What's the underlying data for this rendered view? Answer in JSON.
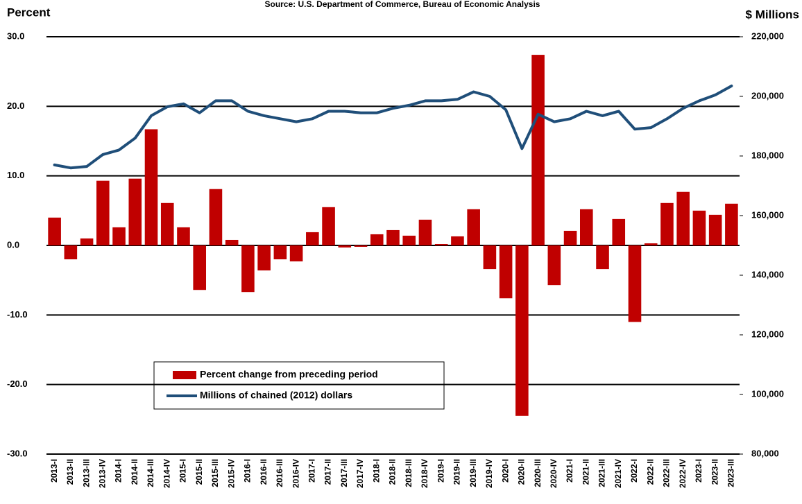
{
  "chart_data": {
    "type": "bar",
    "subtitle": "Source: U.S. Department of Commerce, Bureau of Economic Analysis",
    "y_label": "Percent",
    "y2_label": "$ Millions",
    "categories": [
      "2013-I",
      "2013-II",
      "2013-III",
      "2013-IV",
      "2014-I",
      "2014-II",
      "2014-III",
      "2014-IV",
      "2015-I",
      "2015-II",
      "2015-III",
      "2015-IV",
      "2016-I",
      "2016-II",
      "2016-III",
      "2016-IV",
      "2017-I",
      "2017-II",
      "2017-III",
      "2017-IV",
      "2018-I",
      "2018-II",
      "2018-III",
      "2018-IV",
      "2019-I",
      "2019-II",
      "2019-III",
      "2019-IV",
      "2020-I",
      "2020-II",
      "2020-III",
      "2020-IV",
      "2021-I",
      "2021-II",
      "2021-III",
      "2021-IV",
      "2022-I",
      "2022-II",
      "2022-III",
      "2022-IV",
      "2023-I",
      "2023-II",
      "2023-III"
    ],
    "series": [
      {
        "name": "Percent change from preceding period",
        "type": "bar",
        "color": "#c00000",
        "values": [
          4.0,
          -2.0,
          1.0,
          9.3,
          2.6,
          9.6,
          16.7,
          6.1,
          2.6,
          -6.4,
          8.1,
          0.8,
          -6.7,
          -3.6,
          -2.0,
          -2.3,
          1.9,
          5.5,
          -0.3,
          -0.2,
          1.6,
          2.2,
          1.4,
          3.7,
          0.2,
          1.3,
          5.2,
          -3.4,
          -7.6,
          -24.5,
          27.4,
          -5.7,
          2.1,
          5.2,
          -3.4,
          3.8,
          -11.0,
          0.3,
          6.1,
          7.7,
          5.0,
          4.4,
          6.0
        ]
      },
      {
        "name": "Millions of chained (2012) dollars",
        "type": "line",
        "axis": "y2",
        "color": "#1f4e79",
        "values": [
          177000,
          176000,
          176500,
          180500,
          182000,
          186000,
          193500,
          196500,
          197500,
          194500,
          198500,
          198500,
          195000,
          193500,
          192500,
          191500,
          192500,
          195000,
          195000,
          194500,
          194500,
          196000,
          197000,
          198500,
          198500,
          199000,
          201500,
          200000,
          195500,
          182500,
          194000,
          191500,
          192500,
          195000,
          193500,
          195000,
          189000,
          189500,
          192500,
          196000,
          198500,
          200500,
          203500
        ]
      }
    ],
    "ylim": [
      -30,
      30
    ],
    "yticks": [
      {
        "value": -30,
        "label": "-30.0"
      },
      {
        "value": -20,
        "label": "-20.0"
      },
      {
        "value": -10,
        "label": "-10.0"
      },
      {
        "value": 0,
        "label": "0.0"
      },
      {
        "value": 10,
        "label": "10.0"
      },
      {
        "value": 20,
        "label": "20.0"
      },
      {
        "value": 30,
        "label": "30.0"
      }
    ],
    "y2lim": [
      80000,
      220000
    ],
    "y2ticks": [
      {
        "value": 80000,
        "label": "80,000"
      },
      {
        "value": 100000,
        "label": "100,000"
      },
      {
        "value": 120000,
        "label": "120,000"
      },
      {
        "value": 140000,
        "label": "140,000"
      },
      {
        "value": 160000,
        "label": "160,000"
      },
      {
        "value": 180000,
        "label": "180,000"
      },
      {
        "value": 200000,
        "label": "200,000"
      },
      {
        "value": 220000,
        "label": "220,000"
      }
    ],
    "grid": true
  }
}
